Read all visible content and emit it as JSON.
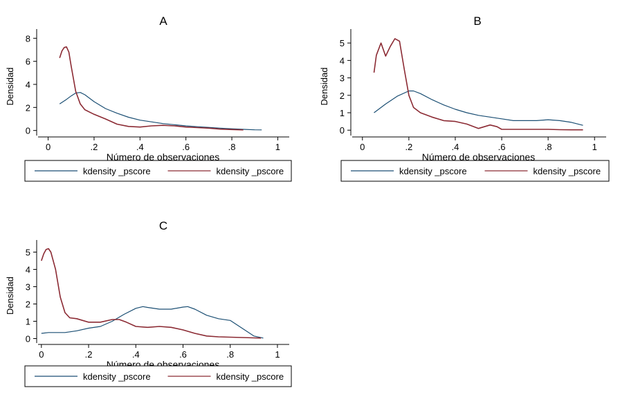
{
  "chart_data": [
    {
      "type": "line",
      "title": "A",
      "xlabel": "Número de observaciones",
      "ylabel": "Densidad",
      "xlim": [
        -0.05,
        1.05
      ],
      "ylim": [
        -0.2,
        8.8
      ],
      "xticks": [
        0,
        0.2,
        0.4,
        0.6,
        0.8,
        1
      ],
      "xtick_labels": [
        "0",
        ".2",
        ".4",
        ".6",
        ".8",
        "1"
      ],
      "yticks": [
        0,
        2,
        4,
        6,
        8
      ],
      "ytick_labels": [
        "0",
        "2",
        "4",
        "6",
        "8"
      ],
      "legend_position": "bottom",
      "series": [
        {
          "label": "kdensity _pscore",
          "color": "#1a4e73",
          "x": [
            0.05,
            0.08,
            0.1,
            0.12,
            0.14,
            0.16,
            0.2,
            0.25,
            0.3,
            0.35,
            0.4,
            0.45,
            0.5,
            0.55,
            0.6,
            0.65,
            0.7,
            0.75,
            0.8,
            0.85,
            0.9,
            0.93
          ],
          "y": [
            2.3,
            2.7,
            3.0,
            3.25,
            3.3,
            3.1,
            2.5,
            1.9,
            1.5,
            1.15,
            0.9,
            0.75,
            0.6,
            0.5,
            0.4,
            0.33,
            0.27,
            0.2,
            0.15,
            0.1,
            0.06,
            0.05
          ]
        },
        {
          "label": "kdensity _pscore",
          "color": "#8b2a33",
          "x": [
            0.05,
            0.06,
            0.07,
            0.08,
            0.09,
            0.1,
            0.12,
            0.14,
            0.16,
            0.2,
            0.25,
            0.3,
            0.35,
            0.4,
            0.45,
            0.5,
            0.55,
            0.6,
            0.65,
            0.7,
            0.75,
            0.8,
            0.85
          ],
          "y": [
            6.3,
            6.9,
            7.2,
            7.25,
            6.8,
            5.6,
            3.4,
            2.3,
            1.8,
            1.4,
            1.0,
            0.55,
            0.35,
            0.3,
            0.4,
            0.45,
            0.4,
            0.3,
            0.25,
            0.2,
            0.12,
            0.08,
            0.05
          ]
        }
      ]
    },
    {
      "type": "line",
      "title": "B",
      "xlabel": "Número de observaciones",
      "ylabel": "Densidad",
      "xlim": [
        -0.05,
        1.05
      ],
      "ylim": [
        -0.15,
        5.8
      ],
      "xticks": [
        0,
        0.2,
        0.4,
        0.6,
        0.8,
        1
      ],
      "xtick_labels": [
        "0",
        ".2",
        ".4",
        ".6",
        ".8",
        "1"
      ],
      "yticks": [
        0,
        1,
        2,
        3,
        4,
        5
      ],
      "ytick_labels": [
        "0",
        "1",
        "2",
        "3",
        "4",
        "5"
      ],
      "legend_position": "bottom",
      "series": [
        {
          "label": "kdensity _pscore",
          "color": "#1a4e73",
          "x": [
            0.05,
            0.1,
            0.15,
            0.2,
            0.22,
            0.25,
            0.3,
            0.35,
            0.4,
            0.45,
            0.5,
            0.55,
            0.6,
            0.65,
            0.7,
            0.75,
            0.8,
            0.85,
            0.9,
            0.95
          ],
          "y": [
            1.0,
            1.5,
            1.95,
            2.25,
            2.25,
            2.1,
            1.75,
            1.45,
            1.2,
            1.0,
            0.85,
            0.75,
            0.65,
            0.55,
            0.55,
            0.55,
            0.6,
            0.55,
            0.45,
            0.28
          ]
        },
        {
          "label": "kdensity _pscore",
          "color": "#8b2a33",
          "x": [
            0.05,
            0.06,
            0.08,
            0.1,
            0.12,
            0.14,
            0.16,
            0.18,
            0.2,
            0.22,
            0.25,
            0.3,
            0.35,
            0.4,
            0.45,
            0.5,
            0.55,
            0.58,
            0.6,
            0.65,
            0.7,
            0.75,
            0.8,
            0.85,
            0.9,
            0.95
          ],
          "y": [
            3.3,
            4.3,
            5.0,
            4.25,
            4.8,
            5.25,
            5.1,
            3.5,
            2.0,
            1.3,
            1.0,
            0.75,
            0.55,
            0.5,
            0.35,
            0.1,
            0.3,
            0.2,
            0.05,
            0.05,
            0.05,
            0.05,
            0.05,
            0.03,
            0.02,
            0.02
          ]
        }
      ]
    },
    {
      "type": "line",
      "title": "C",
      "xlabel": "Número de observaciones",
      "ylabel": "Densidad",
      "xlim": [
        -0.02,
        1.05
      ],
      "ylim": [
        -0.1,
        5.7
      ],
      "xticks": [
        0,
        0.2,
        0.4,
        0.6,
        0.8,
        1
      ],
      "xtick_labels": [
        "0",
        ".2",
        ".4",
        ".6",
        ".8",
        "1"
      ],
      "yticks": [
        0,
        1,
        2,
        3,
        4,
        5
      ],
      "ytick_labels": [
        "0",
        "1",
        "2",
        "3",
        "4",
        "5"
      ],
      "legend_position": "bottom",
      "series": [
        {
          "label": "kdensity _pscore",
          "color": "#1a4e73",
          "x": [
            0,
            0.03,
            0.06,
            0.1,
            0.15,
            0.2,
            0.25,
            0.3,
            0.35,
            0.4,
            0.43,
            0.45,
            0.5,
            0.55,
            0.6,
            0.62,
            0.65,
            0.7,
            0.75,
            0.8,
            0.85,
            0.9,
            0.94
          ],
          "y": [
            0.3,
            0.35,
            0.35,
            0.35,
            0.45,
            0.6,
            0.7,
            1.0,
            1.4,
            1.75,
            1.85,
            1.8,
            1.7,
            1.7,
            1.82,
            1.85,
            1.7,
            1.35,
            1.15,
            1.05,
            0.6,
            0.15,
            0.03
          ]
        },
        {
          "label": "kdensity _pscore",
          "color": "#8b2a33",
          "x": [
            0,
            0.01,
            0.02,
            0.03,
            0.04,
            0.06,
            0.08,
            0.1,
            0.12,
            0.15,
            0.2,
            0.25,
            0.3,
            0.33,
            0.36,
            0.4,
            0.45,
            0.5,
            0.55,
            0.6,
            0.65,
            0.7,
            0.75,
            0.8,
            0.85,
            0.9,
            0.93
          ],
          "y": [
            4.5,
            4.9,
            5.15,
            5.2,
            5.0,
            4.0,
            2.4,
            1.5,
            1.2,
            1.15,
            0.95,
            0.95,
            1.1,
            1.1,
            0.95,
            0.7,
            0.65,
            0.7,
            0.65,
            0.5,
            0.3,
            0.15,
            0.1,
            0.08,
            0.06,
            0.04,
            0.03
          ]
        }
      ]
    }
  ]
}
